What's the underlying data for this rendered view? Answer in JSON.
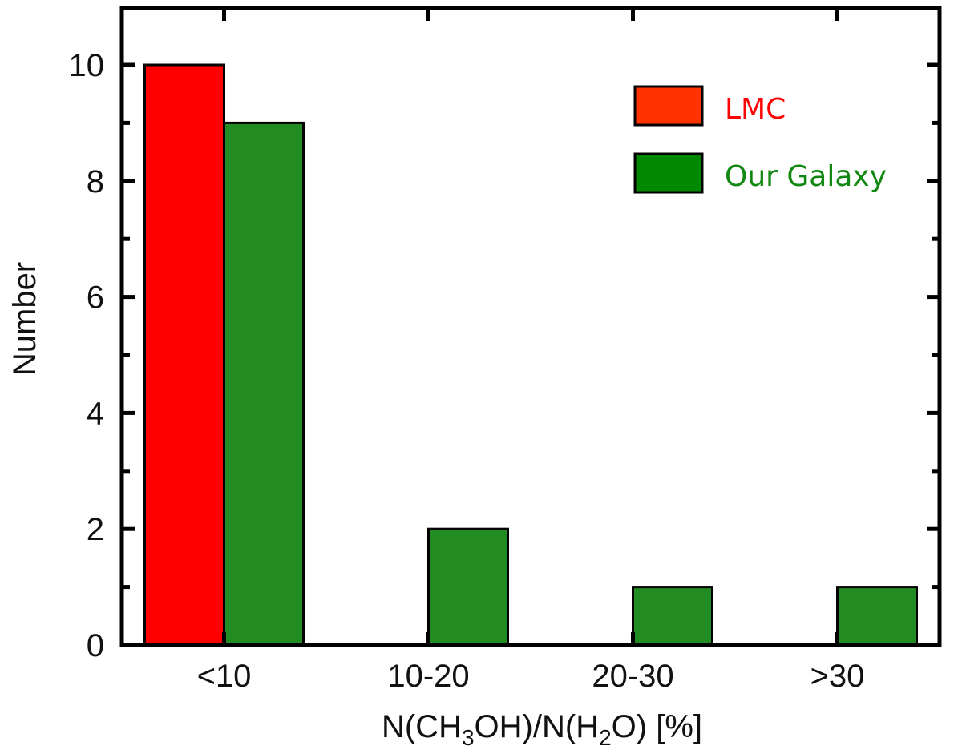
{
  "chart_data": {
    "type": "bar",
    "categories": [
      "<10",
      "10-20",
      "20-30",
      ">30"
    ],
    "series": [
      {
        "name": "LMC",
        "values": [
          10,
          0,
          0,
          0
        ],
        "color": "#ff0000"
      },
      {
        "name": "Our Galaxy",
        "values": [
          9,
          2,
          1,
          1
        ],
        "color": "#228b22"
      }
    ],
    "xlabel": "N(CH3OH)/N(H2O) [%]",
    "xlabel_parts": {
      "a": "N(CH",
      "sub1": "3",
      "b": "OH)/N(H",
      "sub2": "2",
      "c": "O) [%]"
    },
    "ylabel": "Number",
    "ylim": [
      0,
      11
    ],
    "yticks": [
      0,
      2,
      4,
      6,
      8,
      10
    ],
    "grid": false,
    "legend_position": "top-right",
    "legend_colors": {
      "LMC": "#ff3300",
      "Our Galaxy": "#008800"
    },
    "legend_text_colors": {
      "LMC": "#ff0000",
      "Our Galaxy": "#118811"
    }
  }
}
